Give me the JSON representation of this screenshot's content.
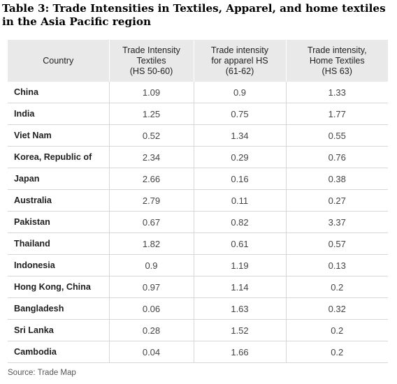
{
  "title": "Table 3: Trade Intensities in Textiles, Apparel, and home textiles in the Asia Pacific region",
  "headers": [
    [
      "Country"
    ],
    [
      "Trade Intensity",
      "Textiles",
      "(HS 50-60)"
    ],
    [
      "Trade intensity",
      "for apparel HS",
      "(61-62)"
    ],
    [
      "Trade intensity,",
      "Home Textiles",
      "(HS 63)"
    ]
  ],
  "rows": [
    [
      "China",
      "1.09",
      "0.9",
      "1.33"
    ],
    [
      "India",
      "1.25",
      "0.75",
      "1.77"
    ],
    [
      "Viet Nam",
      "0.52",
      "1.34",
      "0.55"
    ],
    [
      "Korea, Republic of",
      "2.34",
      "0.29",
      "0.76"
    ],
    [
      "Japan",
      "2.66",
      "0.16",
      "0.38"
    ],
    [
      "Australia",
      "2.79",
      "0.11",
      "0.27"
    ],
    [
      "Pakistan",
      "0.67",
      "0.82",
      "3.37"
    ],
    [
      "Thailand",
      "1.82",
      "0.61",
      "0.57"
    ],
    [
      "Indonesia",
      "0.9",
      "1.19",
      "0.13"
    ],
    [
      "Hong Kong, China",
      "0.97",
      "1.14",
      "0.2"
    ],
    [
      "Bangladesh",
      "0.06",
      "1.63",
      "0.32"
    ],
    [
      "Sri Lanka",
      "0.28",
      "1.52",
      "0.2"
    ],
    [
      "Cambodia",
      "0.04",
      "1.66",
      "0.2"
    ]
  ],
  "source": "Source: Trade Map"
}
